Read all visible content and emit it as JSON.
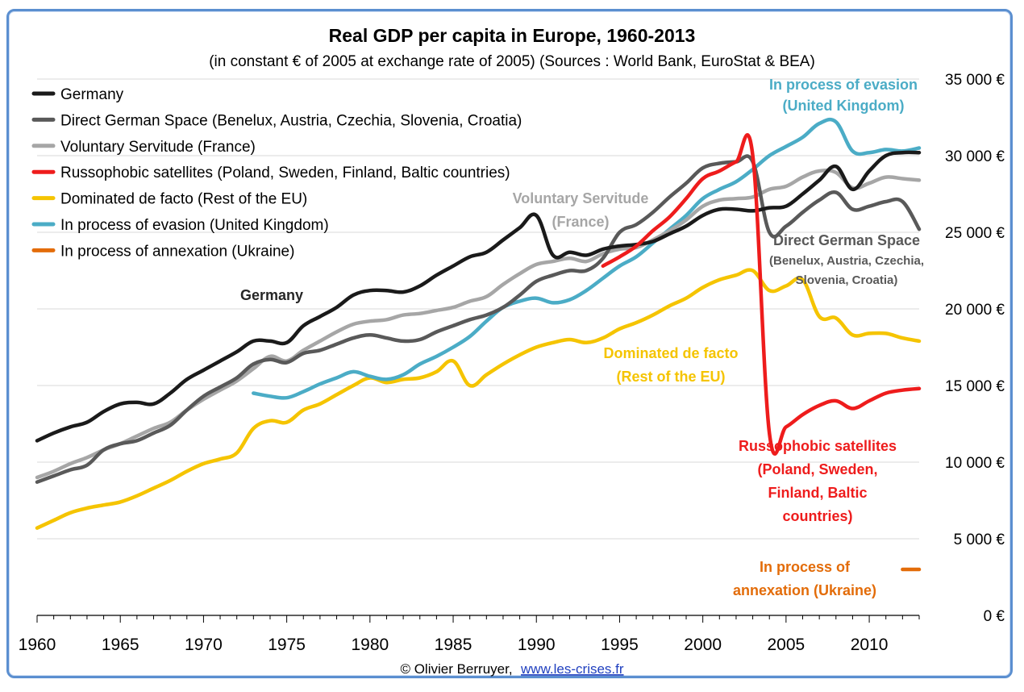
{
  "credit": {
    "author": "© Olivier Berruyer,",
    "link": "www.les-crises.fr"
  },
  "chart_data": {
    "type": "line",
    "title": "Real GDP per capita in Europe, 1960-2013",
    "subtitle": "(in constant € of 2005 at exchange rate of 2005) (Sources : World Bank, EuroStat & BEA)",
    "xlabel": "",
    "ylabel": "",
    "xlim": [
      1960,
      2013
    ],
    "ylim": [
      0,
      35000
    ],
    "x_ticks": [
      "1960",
      "1965",
      "1970",
      "1975",
      "1980",
      "1985",
      "1990",
      "1995",
      "2000",
      "2005",
      "2010"
    ],
    "y_ticks": [
      {
        "value": 0,
        "label": "0 €"
      },
      {
        "value": 5000,
        "label": "5 000 €"
      },
      {
        "value": 10000,
        "label": "10 000 €"
      },
      {
        "value": 15000,
        "label": "15 000 €"
      },
      {
        "value": 20000,
        "label": "20 000 €"
      },
      {
        "value": 25000,
        "label": "25 000 €"
      },
      {
        "value": 30000,
        "label": "30 000 €"
      },
      {
        "value": 35000,
        "label": "35 000 €"
      }
    ],
    "grid": "horizontal",
    "legend_position": "top-left",
    "series": [
      {
        "name": "Germany",
        "color": "#1a1a1a",
        "x": [
          1960,
          1961,
          1962,
          1963,
          1964,
          1965,
          1966,
          1967,
          1968,
          1969,
          1970,
          1971,
          1972,
          1973,
          1974,
          1975,
          1976,
          1977,
          1978,
          1979,
          1980,
          1981,
          1982,
          1983,
          1984,
          1985,
          1986,
          1987,
          1988,
          1989,
          1990,
          1991,
          1992,
          1993,
          1994,
          1995,
          1996,
          1997,
          1998,
          1999,
          2000,
          2001,
          2002,
          2003,
          2004,
          2005,
          2006,
          2007,
          2008,
          2009,
          2010,
          2011,
          2012,
          2013
        ],
        "values": [
          11400,
          11900,
          12300,
          12600,
          13300,
          13800,
          13900,
          13800,
          14500,
          15400,
          16000,
          16600,
          17200,
          17900,
          17900,
          17800,
          18900,
          19500,
          20100,
          20900,
          21200,
          21200,
          21100,
          21500,
          22200,
          22800,
          23400,
          23700,
          24500,
          25300,
          26100,
          23500,
          23700,
          23500,
          23900,
          24100,
          24200,
          24400,
          24900,
          25400,
          26100,
          26500,
          26500,
          26400,
          26600,
          26700,
          27500,
          28400,
          29300,
          27800,
          29000,
          30000,
          30200,
          30200
        ]
      },
      {
        "name": "Direct German Space (Benelux, Austria, Czechia, Slovenia, Croatia)",
        "color": "#595959",
        "x": [
          1960,
          1961,
          1962,
          1963,
          1964,
          1965,
          1966,
          1967,
          1968,
          1969,
          1970,
          1971,
          1972,
          1973,
          1974,
          1975,
          1976,
          1977,
          1978,
          1979,
          1980,
          1981,
          1982,
          1983,
          1984,
          1985,
          1986,
          1987,
          1988,
          1989,
          1990,
          1991,
          1992,
          1993,
          1994,
          1995,
          1996,
          1997,
          1998,
          1999,
          2000,
          2001,
          2002,
          2003,
          2004,
          2005,
          2006,
          2007,
          2008,
          2009,
          2010,
          2011,
          2012,
          2013
        ],
        "values": [
          8700,
          9100,
          9500,
          9800,
          10800,
          11200,
          11400,
          11900,
          12400,
          13400,
          14300,
          14900,
          15500,
          16400,
          16700,
          16500,
          17100,
          17300,
          17700,
          18100,
          18300,
          18100,
          17900,
          18000,
          18500,
          18900,
          19300,
          19600,
          20100,
          20900,
          21800,
          22200,
          22500,
          22500,
          23300,
          25000,
          25500,
          26300,
          27300,
          28200,
          29200,
          29500,
          29600,
          29600,
          25000,
          25400,
          26300,
          27100,
          27600,
          26500,
          26700,
          27000,
          27000,
          25200
        ]
      },
      {
        "name": "Voluntary Servitude (France)",
        "color": "#a6a6a6",
        "x": [
          1960,
          1961,
          1962,
          1963,
          1964,
          1965,
          1966,
          1967,
          1968,
          1969,
          1970,
          1971,
          1972,
          1973,
          1974,
          1975,
          1976,
          1977,
          1978,
          1979,
          1980,
          1981,
          1982,
          1983,
          1984,
          1985,
          1986,
          1987,
          1988,
          1989,
          1990,
          1991,
          1992,
          1993,
          1994,
          1995,
          1996,
          1997,
          1998,
          1999,
          2000,
          2001,
          2002,
          2003,
          2004,
          2005,
          2006,
          2007,
          2008,
          2009,
          2010,
          2011,
          2012,
          2013
        ],
        "values": [
          9000,
          9400,
          9900,
          10300,
          10800,
          11200,
          11700,
          12200,
          12600,
          13400,
          14100,
          14700,
          15300,
          16100,
          16900,
          16600,
          17300,
          17900,
          18500,
          19000,
          19200,
          19300,
          19600,
          19700,
          19900,
          20100,
          20500,
          20800,
          21600,
          22300,
          22900,
          23100,
          23300,
          23100,
          23600,
          23900,
          24000,
          24500,
          25100,
          25800,
          26700,
          27100,
          27200,
          27300,
          27800,
          28000,
          28600,
          29000,
          28900,
          27900,
          28200,
          28600,
          28500,
          28400
        ]
      },
      {
        "name": "Russophobic satellites (Poland, Sweden, Finland, Baltic countries)",
        "color": "#ee1c1c",
        "x": [
          1994,
          1995,
          1996,
          1997,
          1998,
          1999,
          2000,
          2001,
          2002,
          2003,
          2004,
          2005,
          2006,
          2007,
          2008,
          2009,
          2010,
          2011,
          2012,
          2013
        ],
        "values": [
          22800,
          23400,
          24100,
          25100,
          26000,
          27200,
          28500,
          29000,
          29600,
          30000,
          11900,
          12300,
          13100,
          13700,
          14000,
          13500,
          14000,
          14500,
          14700,
          14800
        ]
      },
      {
        "name": "Dominated de facto  (Rest of the EU)",
        "color": "#f5c400",
        "x": [
          1960,
          1961,
          1962,
          1963,
          1964,
          1965,
          1966,
          1967,
          1968,
          1969,
          1970,
          1971,
          1972,
          1973,
          1974,
          1975,
          1976,
          1977,
          1978,
          1979,
          1980,
          1981,
          1982,
          1983,
          1984,
          1985,
          1986,
          1987,
          1988,
          1989,
          1990,
          1991,
          1992,
          1993,
          1994,
          1995,
          1996,
          1997,
          1998,
          1999,
          2000,
          2001,
          2002,
          2003,
          2004,
          2005,
          2006,
          2007,
          2008,
          2009,
          2010,
          2011,
          2012,
          2013
        ],
        "values": [
          5700,
          6200,
          6700,
          7000,
          7200,
          7400,
          7800,
          8300,
          8800,
          9400,
          9900,
          10200,
          10600,
          12200,
          12700,
          12600,
          13400,
          13800,
          14400,
          15000,
          15500,
          15200,
          15400,
          15500,
          15900,
          16600,
          15000,
          15700,
          16400,
          17000,
          17500,
          17800,
          18000,
          17800,
          18100,
          18700,
          19100,
          19600,
          20200,
          20700,
          21400,
          21900,
          22200,
          22500,
          21200,
          21500,
          21900,
          19500,
          19400,
          18300,
          18400,
          18400,
          18100,
          17900
        ]
      },
      {
        "name": "In process of evasion (United Kingdom)",
        "color": "#4bacc6",
        "x": [
          1973,
          1974,
          1975,
          1976,
          1977,
          1978,
          1979,
          1980,
          1981,
          1982,
          1983,
          1984,
          1985,
          1986,
          1987,
          1988,
          1989,
          1990,
          1991,
          1992,
          1993,
          1994,
          1995,
          1996,
          1997,
          1998,
          1999,
          2000,
          2001,
          2002,
          2003,
          2004,
          2005,
          2006,
          2007,
          2008,
          2009,
          2010,
          2011,
          2012,
          2013
        ],
        "values": [
          14500,
          14300,
          14200,
          14600,
          15100,
          15500,
          15900,
          15600,
          15400,
          15700,
          16400,
          16900,
          17500,
          18200,
          19200,
          20100,
          20500,
          20700,
          20400,
          20600,
          21200,
          22000,
          22800,
          23400,
          24300,
          25200,
          26100,
          27200,
          27800,
          28300,
          29100,
          30000,
          30600,
          31200,
          32100,
          32200,
          30300,
          30200,
          30400,
          30300,
          30500
        ]
      },
      {
        "name": "In process of annexation (Ukraine)",
        "color": "#e36c09",
        "x": [
          2012,
          2013
        ],
        "values": [
          3000,
          3000
        ]
      }
    ],
    "annotations": [
      {
        "lines": [
          "In process of evasion",
          "(United Kingdom)"
        ],
        "color": "#4bacc6"
      },
      {
        "lines": [
          "Voluntary Servitude",
          "(France)"
        ],
        "color": "#a6a6a6"
      },
      {
        "lines": [
          "Germany"
        ],
        "color": "#262626"
      },
      {
        "lines": [
          "Direct German Space",
          "(Benelux, Austria, Czechia,",
          "Slovenia, Croatia)"
        ],
        "color": "#595959"
      },
      {
        "lines": [
          "Dominated de facto",
          "(Rest of the EU)"
        ],
        "color": "#f5c400"
      },
      {
        "lines": [
          "Russophobic satellites",
          "(Poland, Sweden,",
          "Finland, Baltic",
          "countries)"
        ],
        "color": "#ee1c1c"
      },
      {
        "lines": [
          "In process of",
          "annexation (Ukraine)"
        ],
        "color": "#e36c09"
      }
    ]
  }
}
